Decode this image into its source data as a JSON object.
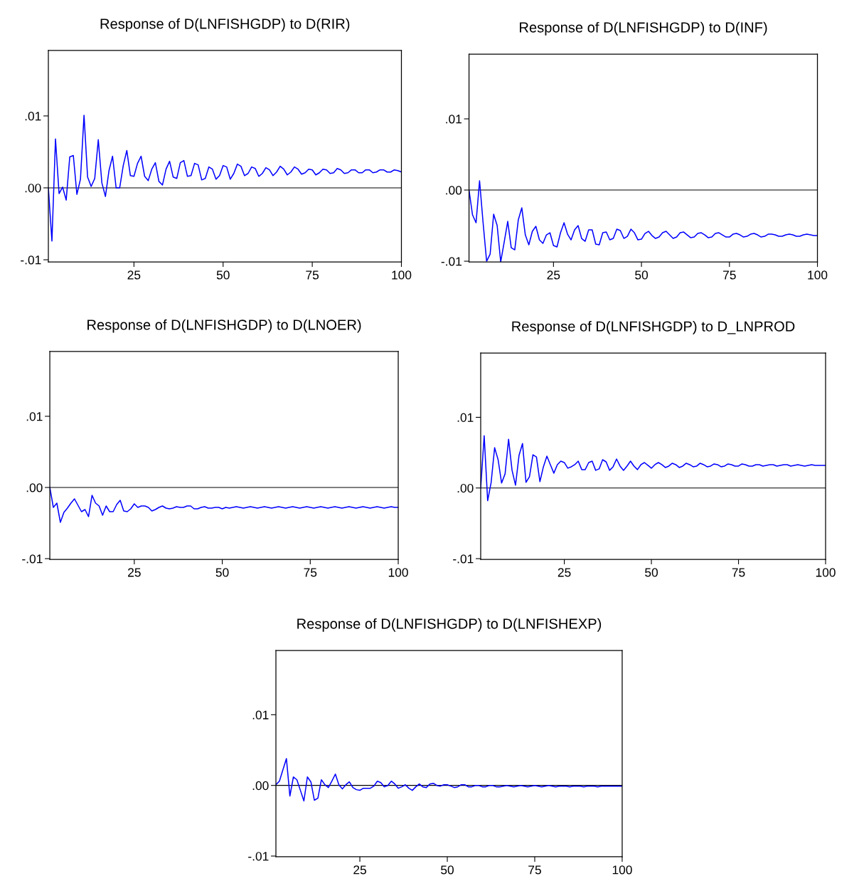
{
  "chart_data": [
    {
      "type": "line",
      "title": "Response of D(LNFISHGDP) to D(RIR)",
      "xlim": [
        1,
        100
      ],
      "xticks": [
        25,
        50,
        75,
        100
      ],
      "ylim": [
        -0.0103,
        0.0191
      ],
      "yticks": [
        {
          "value": -0.01,
          "label": "-.01"
        },
        {
          "value": 0,
          "label": ".00"
        },
        {
          "value": 0.01,
          "label": ".01"
        }
      ],
      "grid": false,
      "ref_lines": [
        {
          "axis": "y",
          "value": 0,
          "color": "#000000"
        }
      ],
      "series": [
        {
          "color": "#0000ff",
          "x": [
            1,
            2,
            3,
            4,
            5,
            6,
            7,
            8,
            9,
            10,
            11,
            12,
            13,
            14,
            15,
            16,
            17,
            18,
            19,
            20,
            21,
            22,
            23,
            24,
            25,
            26,
            27,
            28,
            29,
            30,
            31,
            32,
            33,
            34,
            35,
            36,
            37,
            38,
            39,
            40,
            41,
            42,
            43,
            44,
            45,
            46,
            47,
            48,
            49,
            50,
            51,
            52,
            53,
            54,
            55,
            56,
            57,
            58,
            59,
            60,
            61,
            62,
            63,
            64,
            65,
            66,
            67,
            68,
            69,
            70,
            71,
            72,
            73,
            74,
            75,
            76,
            77,
            78,
            79,
            80,
            81,
            82,
            83,
            84,
            85,
            86,
            87,
            88,
            89,
            90,
            91,
            92,
            93,
            94,
            95,
            96,
            97,
            98,
            99,
            100
          ],
          "values": [
            0,
            -0.0074,
            0.0068,
            -0.0008,
            0.0001,
            -0.0017,
            0.0043,
            0.0045,
            -0.0009,
            0.0012,
            0.0101,
            0.0015,
            0.0002,
            0.0013,
            0.0067,
            0.0007,
            -0.0012,
            0.0024,
            0.0044,
            0.0,
            0.0,
            0.0031,
            0.0052,
            0.0017,
            0.0016,
            0.0034,
            0.0044,
            0.0016,
            0.001,
            0.0026,
            0.0035,
            0.0009,
            0.0004,
            0.0026,
            0.0037,
            0.0015,
            0.0013,
            0.0035,
            0.0038,
            0.0016,
            0.0017,
            0.0034,
            0.0032,
            0.0011,
            0.0013,
            0.0029,
            0.0026,
            0.0012,
            0.0017,
            0.0031,
            0.0029,
            0.0012,
            0.002,
            0.0033,
            0.003,
            0.0017,
            0.002,
            0.0029,
            0.0027,
            0.0016,
            0.002,
            0.0028,
            0.0025,
            0.0017,
            0.0022,
            0.003,
            0.0026,
            0.0018,
            0.0022,
            0.0029,
            0.0026,
            0.0019,
            0.0021,
            0.0026,
            0.0025,
            0.0018,
            0.0021,
            0.0026,
            0.0025,
            0.002,
            0.0021,
            0.0027,
            0.0025,
            0.002,
            0.0021,
            0.0025,
            0.0025,
            0.0021,
            0.0021,
            0.0025,
            0.0025,
            0.0021,
            0.0022,
            0.0025,
            0.0025,
            0.0022,
            0.0022,
            0.0025,
            0.0024,
            0.0022
          ]
        }
      ]
    },
    {
      "type": "line",
      "title": "Response of D(LNFISHGDP) to D(INF)",
      "xlim": [
        1,
        100
      ],
      "xticks": [
        25,
        50,
        75,
        100
      ],
      "ylim": [
        -0.0101,
        0.0191
      ],
      "yticks": [
        {
          "value": -0.01,
          "label": "-.01"
        },
        {
          "value": 0,
          "label": ".00"
        },
        {
          "value": 0.01,
          "label": ".01"
        }
      ],
      "grid": false,
      "ref_lines": [
        {
          "axis": "y",
          "value": 0,
          "color": "#000000"
        }
      ],
      "series": [
        {
          "color": "#0000ff",
          "x": [
            1,
            2,
            3,
            4,
            5,
            6,
            7,
            8,
            9,
            10,
            11,
            12,
            13,
            14,
            15,
            16,
            17,
            18,
            19,
            20,
            21,
            22,
            23,
            24,
            25,
            26,
            27,
            28,
            29,
            30,
            31,
            32,
            33,
            34,
            35,
            36,
            37,
            38,
            39,
            40,
            41,
            42,
            43,
            44,
            45,
            46,
            47,
            48,
            49,
            50,
            51,
            52,
            53,
            54,
            55,
            56,
            57,
            58,
            59,
            60,
            61,
            62,
            63,
            64,
            65,
            66,
            67,
            68,
            69,
            70,
            71,
            72,
            73,
            74,
            75,
            76,
            77,
            78,
            79,
            80,
            81,
            82,
            83,
            84,
            85,
            86,
            87,
            88,
            89,
            90,
            91,
            92,
            93,
            94,
            95,
            96,
            97,
            98,
            99,
            100
          ],
          "values": [
            0,
            -0.0035,
            -0.0046,
            0.0013,
            -0.0046,
            -0.01,
            -0.009,
            -0.0034,
            -0.005,
            -0.0101,
            -0.0073,
            -0.0044,
            -0.0081,
            -0.0084,
            -0.0042,
            -0.0025,
            -0.0063,
            -0.0077,
            -0.0058,
            -0.0051,
            -0.007,
            -0.0075,
            -0.0063,
            -0.006,
            -0.0078,
            -0.008,
            -0.006,
            -0.0046,
            -0.0062,
            -0.007,
            -0.0056,
            -0.005,
            -0.0068,
            -0.0072,
            -0.0056,
            -0.0056,
            -0.0076,
            -0.0077,
            -0.006,
            -0.0059,
            -0.007,
            -0.0068,
            -0.0055,
            -0.0057,
            -0.0068,
            -0.0065,
            -0.0055,
            -0.006,
            -0.007,
            -0.0069,
            -0.0061,
            -0.0058,
            -0.0064,
            -0.0068,
            -0.0066,
            -0.006,
            -0.0058,
            -0.0063,
            -0.0068,
            -0.0066,
            -0.006,
            -0.0059,
            -0.0063,
            -0.0067,
            -0.0066,
            -0.0061,
            -0.006,
            -0.0063,
            -0.0067,
            -0.0066,
            -0.0061,
            -0.006,
            -0.0063,
            -0.0066,
            -0.0066,
            -0.0062,
            -0.0061,
            -0.0063,
            -0.0066,
            -0.0065,
            -0.0062,
            -0.0061,
            -0.0063,
            -0.0066,
            -0.0065,
            -0.0062,
            -0.0062,
            -0.0063,
            -0.0065,
            -0.0065,
            -0.0063,
            -0.0062,
            -0.0063,
            -0.0065,
            -0.0065,
            -0.0063,
            -0.0062,
            -0.0063,
            -0.0064,
            -0.0064
          ]
        }
      ]
    },
    {
      "type": "line",
      "title": "Response of D(LNFISHGDP) to D(LNOER)",
      "xlim": [
        1,
        100
      ],
      "xticks": [
        25,
        50,
        75,
        100
      ],
      "ylim": [
        -0.0101,
        0.0191
      ],
      "yticks": [
        {
          "value": -0.01,
          "label": "-.01"
        },
        {
          "value": 0,
          "label": ".00"
        },
        {
          "value": 0.01,
          "label": ".01"
        }
      ],
      "grid": false,
      "ref_lines": [
        {
          "axis": "y",
          "value": 0,
          "color": "#000000"
        }
      ],
      "series": [
        {
          "color": "#0000ff",
          "x": [
            1,
            2,
            3,
            4,
            5,
            6,
            7,
            8,
            9,
            10,
            11,
            12,
            13,
            14,
            15,
            16,
            17,
            18,
            19,
            20,
            21,
            22,
            23,
            24,
            25,
            26,
            27,
            28,
            29,
            30,
            31,
            32,
            33,
            34,
            35,
            36,
            37,
            38,
            39,
            40,
            41,
            42,
            43,
            44,
            45,
            46,
            47,
            48,
            49,
            50,
            51,
            52,
            53,
            54,
            55,
            56,
            57,
            58,
            59,
            60,
            61,
            62,
            63,
            64,
            65,
            66,
            67,
            68,
            69,
            70,
            71,
            72,
            73,
            74,
            75,
            76,
            77,
            78,
            79,
            80,
            81,
            82,
            83,
            84,
            85,
            86,
            87,
            88,
            89,
            90,
            91,
            92,
            93,
            94,
            95,
            96,
            97,
            98,
            99,
            100
          ],
          "values": [
            0,
            -0.0028,
            -0.0022,
            -0.0049,
            -0.0035,
            -0.0029,
            -0.0022,
            -0.0016,
            -0.0025,
            -0.0034,
            -0.0031,
            -0.0041,
            -0.0011,
            -0.0022,
            -0.0026,
            -0.0039,
            -0.0026,
            -0.0034,
            -0.0034,
            -0.0024,
            -0.0018,
            -0.0033,
            -0.0034,
            -0.003,
            -0.0023,
            -0.0028,
            -0.0026,
            -0.0026,
            -0.0028,
            -0.0033,
            -0.0031,
            -0.0028,
            -0.0026,
            -0.0029,
            -0.003,
            -0.0029,
            -0.0027,
            -0.0028,
            -0.0028,
            -0.0026,
            -0.0026,
            -0.003,
            -0.003,
            -0.0028,
            -0.0027,
            -0.0029,
            -0.0029,
            -0.0028,
            -0.0028,
            -0.003,
            -0.0028,
            -0.0029,
            -0.0028,
            -0.0027,
            -0.0028,
            -0.0029,
            -0.0028,
            -0.0027,
            -0.0028,
            -0.0029,
            -0.0028,
            -0.0027,
            -0.0028,
            -0.0029,
            -0.0028,
            -0.0027,
            -0.0028,
            -0.0029,
            -0.0028,
            -0.0027,
            -0.0028,
            -0.0029,
            -0.0028,
            -0.0027,
            -0.0028,
            -0.0029,
            -0.0028,
            -0.0027,
            -0.0028,
            -0.0029,
            -0.0028,
            -0.0027,
            -0.0028,
            -0.0029,
            -0.0028,
            -0.0027,
            -0.0028,
            -0.0029,
            -0.0028,
            -0.0027,
            -0.0028,
            -0.0029,
            -0.0028,
            -0.0027,
            -0.0028,
            -0.0029,
            -0.0028,
            -0.0027,
            -0.0028,
            -0.0028
          ]
        }
      ]
    },
    {
      "type": "line",
      "title": "Response of D(LNFISHGDP) to D_LNPROD",
      "xlim": [
        1,
        100
      ],
      "xticks": [
        25,
        50,
        75,
        100
      ],
      "ylim": [
        -0.0101,
        0.0191
      ],
      "yticks": [
        {
          "value": -0.01,
          "label": "-.01"
        },
        {
          "value": 0,
          "label": ".00"
        },
        {
          "value": 0.01,
          "label": ".01"
        }
      ],
      "grid": false,
      "ref_lines": [
        {
          "axis": "y",
          "value": 0,
          "color": "#000000"
        }
      ],
      "series": [
        {
          "color": "#0000ff",
          "x": [
            1,
            2,
            3,
            4,
            5,
            6,
            7,
            8,
            9,
            10,
            11,
            12,
            13,
            14,
            15,
            16,
            17,
            18,
            19,
            20,
            21,
            22,
            23,
            24,
            25,
            26,
            27,
            28,
            29,
            30,
            31,
            32,
            33,
            34,
            35,
            36,
            37,
            38,
            39,
            40,
            41,
            42,
            43,
            44,
            45,
            46,
            47,
            48,
            49,
            50,
            51,
            52,
            53,
            54,
            55,
            56,
            57,
            58,
            59,
            60,
            61,
            62,
            63,
            64,
            65,
            66,
            67,
            68,
            69,
            70,
            71,
            72,
            73,
            74,
            75,
            76,
            77,
            78,
            79,
            80,
            81,
            82,
            83,
            84,
            85,
            86,
            87,
            88,
            89,
            90,
            91,
            92,
            93,
            94,
            95,
            96,
            97,
            98,
            99,
            100
          ],
          "values": [
            0,
            0.0074,
            -0.0018,
            0.0008,
            0.0057,
            0.004,
            0.0007,
            0.002,
            0.0069,
            0.0025,
            0.0004,
            0.0046,
            0.0063,
            0.0008,
            0.0016,
            0.0047,
            0.0044,
            0.0009,
            0.003,
            0.0045,
            0.0033,
            0.0021,
            0.0033,
            0.0038,
            0.0036,
            0.0028,
            0.003,
            0.0033,
            0.0038,
            0.0026,
            0.0026,
            0.0036,
            0.0038,
            0.0025,
            0.0027,
            0.004,
            0.0037,
            0.0025,
            0.003,
            0.0041,
            0.0031,
            0.0025,
            0.0031,
            0.0038,
            0.0031,
            0.0026,
            0.0033,
            0.0036,
            0.0032,
            0.0028,
            0.0033,
            0.0036,
            0.0033,
            0.0029,
            0.0031,
            0.0035,
            0.0033,
            0.0029,
            0.0031,
            0.0035,
            0.0033,
            0.003,
            0.0031,
            0.0035,
            0.0033,
            0.003,
            0.0031,
            0.0034,
            0.0033,
            0.003,
            0.0031,
            0.0034,
            0.0033,
            0.0031,
            0.0031,
            0.0034,
            0.0033,
            0.0031,
            0.0031,
            0.0033,
            0.0033,
            0.0031,
            0.0032,
            0.0033,
            0.0033,
            0.0031,
            0.0032,
            0.0033,
            0.0033,
            0.0031,
            0.0032,
            0.0033,
            0.0032,
            0.0031,
            0.0032,
            0.0033,
            0.0032,
            0.0032,
            0.0032,
            0.0032
          ]
        }
      ]
    },
    {
      "type": "line",
      "title": "Response of D(LNFISHGDP) to D(LNFISHEXP)",
      "xlim": [
        1,
        100
      ],
      "xticks": [
        25,
        50,
        75,
        100
      ],
      "ylim": [
        -0.0101,
        0.0191
      ],
      "yticks": [
        {
          "value": -0.01,
          "label": "-.01"
        },
        {
          "value": 0,
          "label": ".00"
        },
        {
          "value": 0.01,
          "label": ".01"
        }
      ],
      "grid": false,
      "ref_lines": [
        {
          "axis": "y",
          "value": 0,
          "color": "#000000"
        }
      ],
      "series": [
        {
          "color": "#0000ff",
          "x": [
            1,
            2,
            3,
            4,
            5,
            6,
            7,
            8,
            9,
            10,
            11,
            12,
            13,
            14,
            15,
            16,
            17,
            18,
            19,
            20,
            21,
            22,
            23,
            24,
            25,
            26,
            27,
            28,
            29,
            30,
            31,
            32,
            33,
            34,
            35,
            36,
            37,
            38,
            39,
            40,
            41,
            42,
            43,
            44,
            45,
            46,
            47,
            48,
            49,
            50,
            51,
            52,
            53,
            54,
            55,
            56,
            57,
            58,
            59,
            60,
            61,
            62,
            63,
            64,
            65,
            66,
            67,
            68,
            69,
            70,
            71,
            72,
            73,
            74,
            75,
            76,
            77,
            78,
            79,
            80,
            81,
            82,
            83,
            84,
            85,
            86,
            87,
            88,
            89,
            90,
            91,
            92,
            93,
            94,
            95,
            96,
            97,
            98,
            99,
            100
          ],
          "values": [
            0.0001,
            0.0006,
            0.0022,
            0.0038,
            -0.0015,
            0.0012,
            0.0008,
            -0.0007,
            -0.0022,
            0.0012,
            0.0005,
            -0.0021,
            -0.0018,
            0.0008,
            0.0001,
            -0.0003,
            0.0006,
            0.0016,
            0.0001,
            -0.0005,
            0.0001,
            0.0005,
            -0.0003,
            -0.0006,
            -0.0007,
            -0.0004,
            -0.0004,
            -0.0004,
            -0.0001,
            0.0006,
            0.0004,
            -0.0002,
            0.0,
            0.0006,
            0.0002,
            -0.0004,
            -0.0002,
            0.0001,
            -0.0004,
            -0.0007,
            -0.0002,
            0.0002,
            -0.0002,
            -0.0003,
            0.0002,
            0.0003,
            0.0,
            -0.0001,
            0.0001,
            0.0001,
            -0.0001,
            -0.0003,
            -0.0002,
            0.0001,
            0.0001,
            -0.0002,
            -0.0002,
            0.0,
            0.0,
            -0.0002,
            -0.0002,
            0.0,
            0.0,
            -0.0002,
            -0.0002,
            -0.0001,
            0.0,
            -0.0001,
            -0.0002,
            -0.0001,
            0.0,
            -0.0001,
            -0.0002,
            -0.0001,
            0.0,
            -0.0001,
            -0.0002,
            -0.0001,
            0.0,
            -0.0001,
            -0.0002,
            -0.0001,
            -0.0001,
            -0.0001,
            -0.0002,
            -0.0001,
            -0.0001,
            -0.0001,
            -0.0002,
            -0.0001,
            -0.0001,
            -0.0001,
            -0.0002,
            -0.0001,
            -0.0001,
            -0.0001,
            -0.0001,
            -0.0001,
            -0.0001,
            -0.0001
          ]
        }
      ]
    }
  ]
}
